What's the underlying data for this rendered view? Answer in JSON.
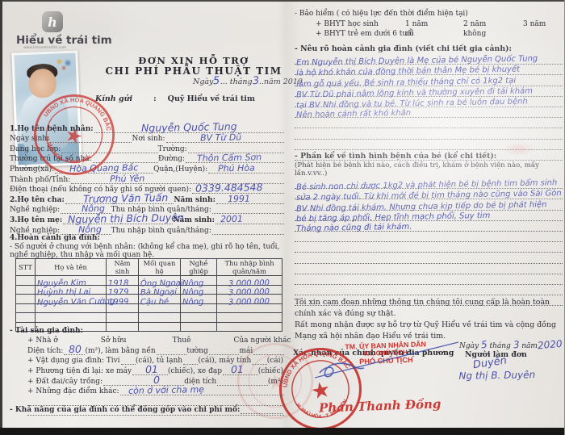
{
  "brand": {
    "logo_letter": "h",
    "name": "Hiểu về trái tim",
    "website": "www.hieuvetraitim.com"
  },
  "header": {
    "title_line1": "ĐƠN XIN HỖ TRỢ",
    "title_line2": "CHI PHÍ PHẪU THUẬT TIM",
    "date_prefix": "Ngày",
    "date_day": "5",
    "date_mid1": "... tháng",
    "date_month": "3",
    "date_mid2": "..năm 2019",
    "kinh_gui_label": "Kính gửi",
    "kinh_gui_sep": ":",
    "kinh_gui_value": "Quỹ Hiểu về trái tim"
  },
  "patient": {
    "f1_label": "1.Họ tên bệnh nhân:",
    "f1_value": "Nguyễn Quốc Tung",
    "f2a_label": "Ngày sinh:",
    "f2b_label": "Nơi sinh:",
    "f2b_value": "BV Từ Dũ",
    "f3a_label": "Đang học lớp:",
    "f3b_label": "Trường:",
    "f4a_label": "Thường trú tại số nhà:",
    "f4b_label": "Đường:",
    "f4b_value": "Thôn Cẩm Sơn",
    "f5a_label": "Phường(xã):",
    "f5a_value": "Hòa Quang Bắc",
    "f5b_label": "Quận,(Huyện):",
    "f5b_value": "Phú Hòa",
    "f6_label": "Thành phố/Tỉnh:",
    "f6_value": "Phú Yên",
    "f7_label": "Điện thoại (nếu không có hãy ghi số người quen):",
    "f7_value": "0339.484548",
    "f8a_label": "2.Họ tên cha:",
    "f8a_value": "Trương Văn Tuấn",
    "f8b_label": "Năm sinh:",
    "f8b_value": "1991",
    "f9a_label": "Nghề nghiệp:",
    "f9a_value": "Nông",
    "f9b_label": "Thu nhập bình quân/tháng:",
    "f10a_label": "3.Họ tên mẹ:",
    "f10a_value": "Nguyễn thị Bích Duyên",
    "f10b_label": "Năm sinh:",
    "f10b_value": "2001",
    "f11a_label": "Nghề nghiệp:",
    "f11a_value": "Nông",
    "f11b_label": "Thu nhập bình quân/tháng:"
  },
  "household": {
    "section_label": "4.Hoàn cảnh gia đình:",
    "note": "- Số người ở chung với bệnh nhân: (không kể cha mẹ), ghi rõ họ tên, tuổi, nghề nghiệp, thu nhập và mối quan hệ.",
    "table": {
      "headers": [
        "STT",
        "Họ và tên",
        "Năm sinh",
        "Mối quan hệ",
        "Nghề ghiệp",
        "Thu nhập bình quân/năm"
      ],
      "rows": [
        {
          "name": "Nguyễn Kim",
          "year": "1918",
          "relation": "Ông Ngoại",
          "job": "Nông",
          "income": "3.000.000"
        },
        {
          "name": "Huỳnh thị Lai",
          "year": "1979",
          "relation": "Bà Ngoại",
          "job": "Nông",
          "income": "3.000.000"
        },
        {
          "name": "Nguyễn Văn Cường",
          "year": "1999",
          "relation": "Cậu bé",
          "job": "Nông",
          "income": "3.000.000"
        }
      ]
    }
  },
  "assets": {
    "section_label": "- Tài sản gia đình:",
    "house_label": "+ Nhà ở",
    "own_label": "Sở hữu",
    "rent_label": "Thuê",
    "other_label": "Của người khác",
    "area_label": "Diện tích:",
    "area_value": "80",
    "area_unit": "(m²), làm bằng nền",
    "wall_label": "tường",
    "roof_label": "mái",
    "appl_label": "+ Vật dụng gia đình: Tivi",
    "appl_mid1": "(cái), tủ lạnh",
    "appl_mid2": "(cái), máy tính",
    "appl_end": "(cái)",
    "veh_label": "+ Phương tiện đi lại: xe máy",
    "veh_moto": "01",
    "veh_mid": "(chiếc), xe đạp",
    "veh_bike": "01",
    "veh_end": "(chiếc)",
    "land_label": "+ Đất đai/cây trồng:",
    "land_value": "0",
    "land_mid": "diện tích",
    "land_unit": "(m²)",
    "feat_label": "+ Những đặc điểm khác:",
    "feat_value": "còn ở với cha mẹ",
    "contribute_label": "- Khả năng của gia đình có thể đóng góp vào chi phí mổ:"
  },
  "insurance": {
    "title": "- Bảo hiểm ( có hiệu lực đến thời điểm hiện tại)",
    "line1_label": "+ BHYT học sinh",
    "line1_opt1": "1 năm",
    "line1_opt2": "2 năm",
    "line1_opt3": "3 năm",
    "line2_label": "+ BHYT trẻ em dưới 6 tuổi",
    "line2_opt1": "có",
    "line2_opt2": "không"
  },
  "circumstances": {
    "title": "- Nêu rõ hoàn cảnh gia đình (viết chi tiết gia cảnh):",
    "lines": [
      "Em Nguyễn thị Bích Duyên là Mẹ của bé Nguyễn Quốc Tung",
      "là hộ khó khăn của đồng thời bản thân Mẹ bé bị khuyết",
      "làm gỗ quá yếu. Bé sinh ra thiếu tháng chỉ có 1kg2 tại",
      "BV Từ Dũ phải nằm lồng kính và thường xuyên đi tái khám",
      "tại BV Nhi đồng và tu bé. Từ lúc sinh ra bé luôn đau bệnh",
      "Nên hoàn cảnh rất khó khăn"
    ]
  },
  "illness": {
    "title": "- Phần kể về tình hình bệnh của bé (kể chi tiết):",
    "hint": "(Phát hiện bé bệnh khi nào, cách điều trị, khám ở bệnh viện nào, mấy lần.v.vv..)",
    "lines": [
      "Bé sinh non chỉ được 1kg2 và phát hiện bé bị bệnh tim bẩm sinh",
      "sửa 2 ngày tuổi. Từ khi mới đẻ bị tim tháng nào cũng vào Sài Gòn",
      "BV Nhi đồng tái khám. Nhưng chưa kịp tiếp do bé bị phát hiện",
      "bé bị tăng áp phổi, Hẹp tĩnh mạch phổi, Suy tim",
      "Tháng nào cũng đi tái khám."
    ]
  },
  "commitment": {
    "line1": "Tôi xin cam đoan những thông tin chúng tôi cung cấp là hoàn toàn chính xác và đúng sự thật.",
    "line2": "Rất mong nhận được sự hỗ trợ từ Quỹ Hiểu về trái tim và cộng đồng Mạng xã hội nhân đạo Hiểu về trái tim."
  },
  "approval": {
    "date_prefix": "Ngày",
    "date_day": "5",
    "date_mid1": "tháng",
    "date_month": "3",
    "date_mid2": "năm",
    "date_year": "2020",
    "applicant_label": "Người làm đơn",
    "applicant_signature": "Duyên",
    "applicant_name": "Ng thị B. Duyên",
    "confirm_label": "Xác nhận của chính quyền địa phương",
    "stamp_line1": "TM. ỦY BAN NHÂN DÂN",
    "stamp_line2": "KT. CHỦ TỊCH",
    "stamp_line3": "PHÓ CHỦ TỊCH",
    "official_name": "Phan Thanh Đồng"
  },
  "seal": {
    "top_text": "UBND XÃ HÒA QUANG BẮC",
    "bottom_text": "H. PHÚ HÒA · T. PHÚ YÊN",
    "star": "★"
  },
  "colors": {
    "stamp_red": "#cf2f2b",
    "handwriting_blue": "#4a51ad",
    "paper": "#eeece9"
  }
}
